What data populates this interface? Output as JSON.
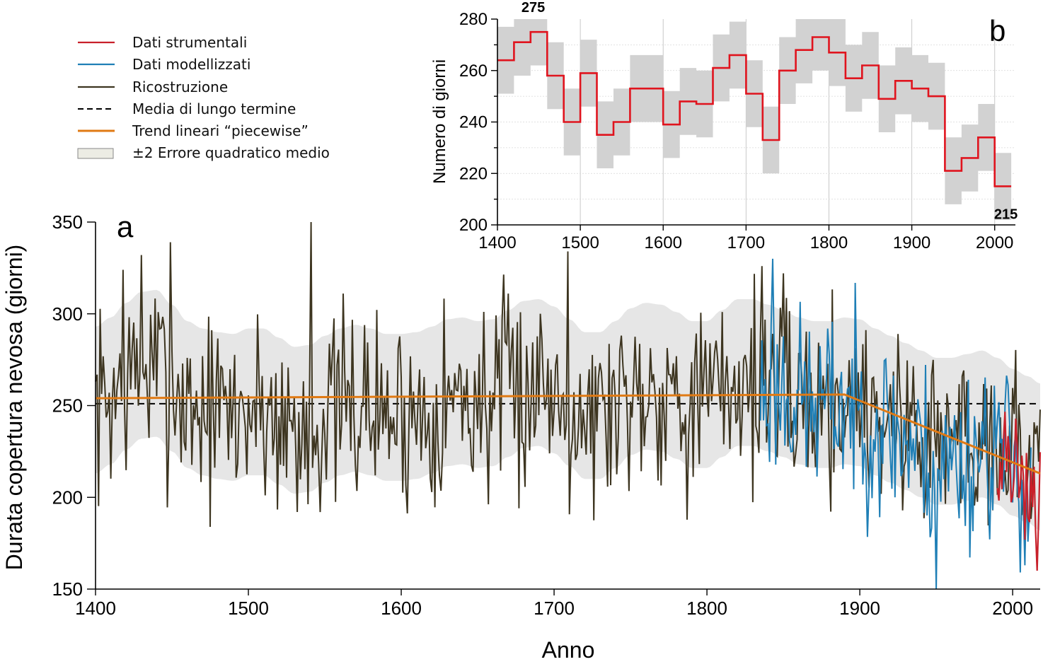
{
  "colors": {
    "instrumental": "#c8202a",
    "modelled": "#1f7fb6",
    "reconstruction": "#3d3520",
    "mean": "#000000",
    "trend": "#e07a14",
    "band": "#e6e6e6",
    "stepline": "#e0141e",
    "stepband": "#d2d2d2"
  },
  "legend": [
    {
      "label": "Dati strumentali",
      "style": "instrumental"
    },
    {
      "label": "Dati modellizzati",
      "style": "modelled"
    },
    {
      "label": "Ricostruzione",
      "style": "reconstruction"
    },
    {
      "label": "Media di lungo termine",
      "style": "mean"
    },
    {
      "label": "Trend lineari “piecewise”",
      "style": "trend"
    },
    {
      "label": "±2 Errore quadratico medio",
      "style": "band"
    }
  ],
  "chart_data": [
    {
      "id": "a",
      "type": "line",
      "panel_label": "a",
      "xlabel": "Anno",
      "ylabel": "Durata copertura nevosa (giorni)",
      "xlim": [
        1400,
        2018
      ],
      "ylim": [
        150,
        350
      ],
      "xticks": [
        1400,
        1500,
        1600,
        1700,
        1800,
        1900,
        2000
      ],
      "yticks": [
        150,
        200,
        250,
        300,
        350
      ],
      "long_term_mean": 251,
      "trend_segments": [
        {
          "x": [
            1400,
            1890
          ],
          "y": [
            254,
            256
          ]
        },
        {
          "x": [
            1890,
            2018
          ],
          "y": [
            256,
            213
          ]
        }
      ],
      "band_anchor_years": [
        1400,
        1410,
        1420,
        1430,
        1440,
        1450,
        1460,
        1470,
        1480,
        1490,
        1500,
        1510,
        1520,
        1530,
        1540,
        1550,
        1560,
        1570,
        1580,
        1590,
        1600,
        1610,
        1620,
        1630,
        1640,
        1650,
        1660,
        1670,
        1680,
        1690,
        1700,
        1710,
        1720,
        1730,
        1740,
        1750,
        1760,
        1770,
        1780,
        1790,
        1800,
        1810,
        1820,
        1830,
        1840,
        1850,
        1860,
        1870,
        1880,
        1890,
        1900,
        1910,
        1920,
        1930,
        1940,
        1950,
        1960,
        1970,
        1980,
        1990,
        2000,
        2010,
        2018
      ],
      "band_center": [
        253,
        258,
        266,
        272,
        273,
        265,
        256,
        252,
        250,
        249,
        252,
        252,
        247,
        242,
        243,
        248,
        252,
        254,
        252,
        249,
        249,
        250,
        253,
        257,
        258,
        256,
        257,
        262,
        267,
        268,
        264,
        257,
        250,
        250,
        256,
        263,
        266,
        265,
        261,
        256,
        256,
        262,
        268,
        268,
        265,
        262,
        258,
        256,
        256,
        258,
        257,
        252,
        248,
        244,
        240,
        236,
        236,
        238,
        240,
        236,
        230,
        226,
        222
      ],
      "band_half_width": 40,
      "series": [
        {
          "name": "Ricostruzione",
          "color_key": "reconstruction",
          "anchor_years": [
            1400,
            1410,
            1420,
            1430,
            1440,
            1450,
            1460,
            1470,
            1480,
            1490,
            1500,
            1510,
            1520,
            1530,
            1540,
            1550,
            1560,
            1570,
            1580,
            1590,
            1600,
            1610,
            1620,
            1630,
            1640,
            1650,
            1660,
            1670,
            1680,
            1690,
            1700,
            1710,
            1720,
            1730,
            1740,
            1750,
            1760,
            1770,
            1780,
            1790,
            1800,
            1810,
            1820,
            1830,
            1840,
            1850,
            1860,
            1870,
            1880,
            1890,
            1900,
            1910,
            1920,
            1930,
            1940,
            1950,
            1960,
            1970,
            1980,
            1990,
            2000,
            2010,
            2018
          ],
          "anchor_values": [
            253,
            258,
            266,
            272,
            273,
            265,
            256,
            252,
            250,
            249,
            252,
            252,
            247,
            242,
            243,
            248,
            252,
            254,
            252,
            249,
            249,
            250,
            253,
            257,
            258,
            256,
            257,
            262,
            267,
            268,
            264,
            257,
            250,
            250,
            256,
            263,
            266,
            265,
            261,
            256,
            256,
            262,
            268,
            268,
            265,
            262,
            258,
            256,
            256,
            258,
            257,
            252,
            248,
            244,
            240,
            236,
            236,
            238,
            240,
            236,
            230,
            226,
            222
          ],
          "amplitude": 32,
          "peaks": [
            {
              "x": 1418,
              "y": 324
            },
            {
              "x": 1430,
              "y": 332
            },
            {
              "x": 1449,
              "y": 339
            },
            {
              "x": 1541,
              "y": 350
            },
            {
              "x": 1532,
              "y": 192
            },
            {
              "x": 1709,
              "y": 334
            },
            {
              "x": 1677,
              "y": 194
            },
            {
              "x": 1836,
              "y": 326
            }
          ]
        },
        {
          "name": "Dati modellizzati",
          "color_key": "modelled",
          "x_range": [
            1835,
            2012
          ],
          "anchor_years": [
            1835,
            1850,
            1860,
            1870,
            1880,
            1890,
            1900,
            1910,
            1920,
            1930,
            1940,
            1950,
            1960,
            1970,
            1980,
            1990,
            2000,
            2010
          ],
          "anchor_values": [
            262,
            264,
            258,
            252,
            254,
            256,
            250,
            245,
            240,
            235,
            228,
            222,
            222,
            226,
            234,
            232,
            222,
            216
          ],
          "amplitude": 30,
          "peaks": [
            {
              "x": 1843,
              "y": 330
            },
            {
              "x": 1950,
              "y": 150
            },
            {
              "x": 2008,
              "y": 163
            }
          ]
        },
        {
          "name": "Dati strumentali",
          "color_key": "instrumental",
          "x_range": [
            1990,
            2018
          ],
          "anchor_years": [
            1990,
            2000,
            2010,
            2018
          ],
          "anchor_values": [
            228,
            222,
            215,
            205
          ],
          "amplitude": 20,
          "peaks": [
            {
              "x": 2016,
              "y": 160
            }
          ]
        }
      ]
    },
    {
      "id": "b",
      "type": "line",
      "step": true,
      "panel_label": "b",
      "xlabel": "",
      "ylabel": "Numero di giorni",
      "xlim": [
        1400,
        2025
      ],
      "ylim": [
        200,
        280
      ],
      "xticks": [
        1400,
        1500,
        1600,
        1700,
        1800,
        1900,
        2000
      ],
      "yticks": [
        200,
        220,
        240,
        260,
        280
      ],
      "x": [
        1400,
        1420,
        1440,
        1460,
        1480,
        1500,
        1520,
        1540,
        1560,
        1580,
        1600,
        1620,
        1640,
        1660,
        1680,
        1700,
        1720,
        1740,
        1760,
        1780,
        1800,
        1820,
        1840,
        1860,
        1880,
        1900,
        1920,
        1940,
        1960,
        1980,
        2000,
        2020
      ],
      "values": [
        264,
        271,
        275,
        258,
        240,
        259,
        235,
        240,
        253,
        253,
        239,
        248,
        247,
        261,
        266,
        251,
        233,
        260,
        268,
        273,
        267,
        257,
        262,
        249,
        256,
        253,
        250,
        221,
        226,
        234,
        215,
        215
      ],
      "band_half_width": 13,
      "annotations": [
        {
          "label": "275",
          "x": 1450,
          "y": 275
        },
        {
          "label": "215",
          "x": 2005,
          "y": 215
        }
      ]
    }
  ]
}
